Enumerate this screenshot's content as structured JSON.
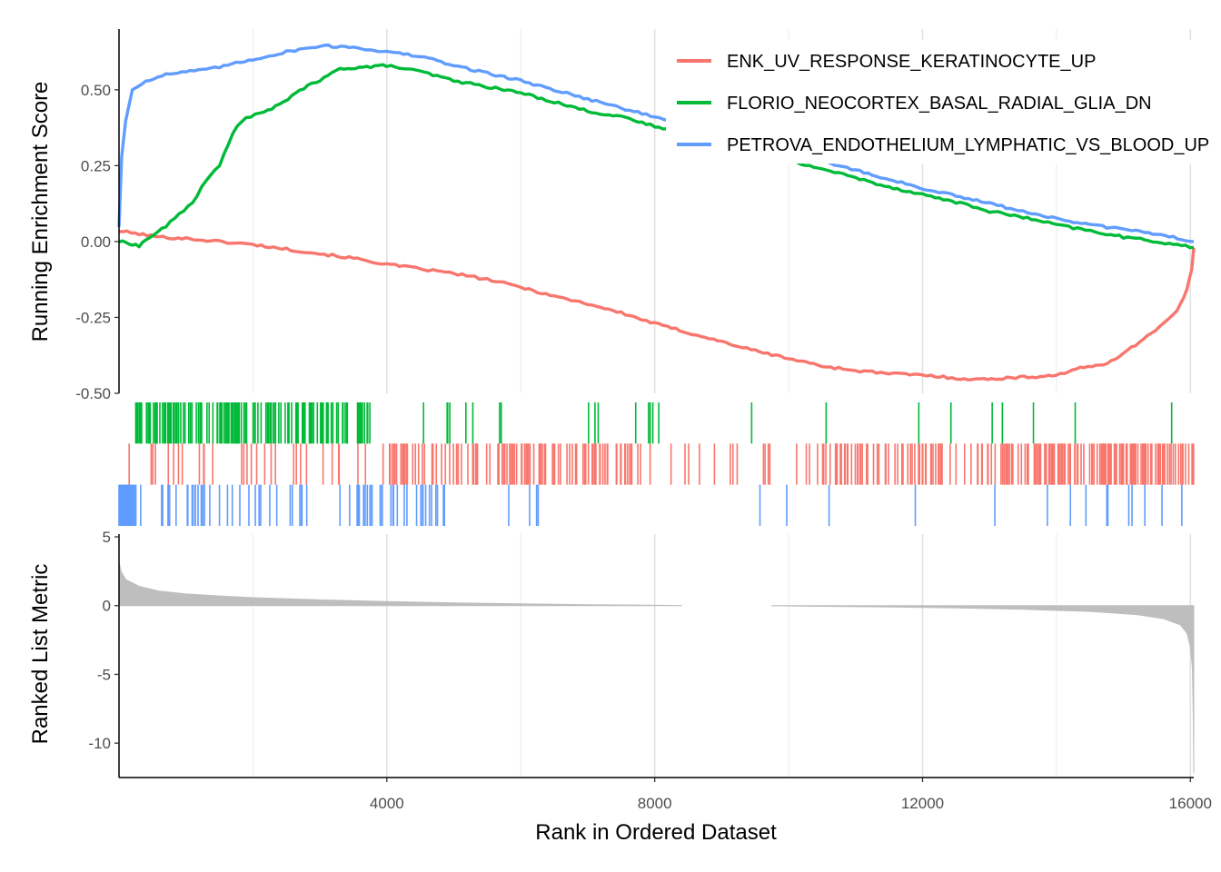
{
  "chart_data": {
    "type": "line",
    "xlabel": "Rank in Ordered Dataset",
    "x_ticks": [
      4000,
      8000,
      12000,
      16000
    ],
    "xlim": [
      0,
      16050
    ],
    "legend_position": "top-right",
    "es_panel": {
      "ylabel": "Running Enrichment Score",
      "ylim": [
        -0.5,
        0.7
      ],
      "y_ticks": [
        -0.5,
        -0.25,
        0,
        0.25,
        0.5
      ],
      "y_tick_labels": [
        "-0.50",
        "-0.25",
        "0.00",
        "0.25",
        "0.50"
      ],
      "series": [
        {
          "name": "ENK_UV_RESPONSE_KERATINOCYTE_UP",
          "color": "#F8766D",
          "points": [
            [
              0,
              0.035
            ],
            [
              300,
              0.025
            ],
            [
              600,
              0.015
            ],
            [
              1000,
              0.01
            ],
            [
              1500,
              0.0
            ],
            [
              2000,
              -0.01
            ],
            [
              2500,
              -0.025
            ],
            [
              3000,
              -0.04
            ],
            [
              3500,
              -0.055
            ],
            [
              4000,
              -0.075
            ],
            [
              4500,
              -0.09
            ],
            [
              5000,
              -0.105
            ],
            [
              5500,
              -0.125
            ],
            [
              6000,
              -0.15
            ],
            [
              6500,
              -0.18
            ],
            [
              7000,
              -0.205
            ],
            [
              7500,
              -0.235
            ],
            [
              8000,
              -0.27
            ],
            [
              8500,
              -0.3
            ],
            [
              9000,
              -0.33
            ],
            [
              9500,
              -0.36
            ],
            [
              10000,
              -0.385
            ],
            [
              10500,
              -0.41
            ],
            [
              11000,
              -0.425
            ],
            [
              11500,
              -0.435
            ],
            [
              12000,
              -0.44
            ],
            [
              12500,
              -0.45
            ],
            [
              12800,
              -0.455
            ],
            [
              13200,
              -0.45
            ],
            [
              13700,
              -0.445
            ],
            [
              14000,
              -0.44
            ],
            [
              14300,
              -0.42
            ],
            [
              14700,
              -0.405
            ],
            [
              15000,
              -0.37
            ],
            [
              15300,
              -0.32
            ],
            [
              15600,
              -0.27
            ],
            [
              15800,
              -0.23
            ],
            [
              15950,
              -0.16
            ],
            [
              16020,
              -0.09
            ],
            [
              16050,
              -0.02
            ]
          ]
        },
        {
          "name": "FLORIO_NEOCORTEX_BASAL_RADIAL_GLIA_DN",
          "color": "#00BA38",
          "points": [
            [
              0,
              0.0
            ],
            [
              150,
              -0.005
            ],
            [
              300,
              -0.015
            ],
            [
              400,
              0.005
            ],
            [
              700,
              0.05
            ],
            [
              900,
              0.09
            ],
            [
              1100,
              0.13
            ],
            [
              1300,
              0.2
            ],
            [
              1500,
              0.25
            ],
            [
              1700,
              0.36
            ],
            [
              1900,
              0.41
            ],
            [
              2100,
              0.42
            ],
            [
              2400,
              0.45
            ],
            [
              2700,
              0.5
            ],
            [
              3000,
              0.53
            ],
            [
              3300,
              0.57
            ],
            [
              3700,
              0.575
            ],
            [
              4000,
              0.58
            ],
            [
              4500,
              0.56
            ],
            [
              5000,
              0.53
            ],
            [
              5500,
              0.51
            ],
            [
              6000,
              0.49
            ],
            [
              6500,
              0.46
            ],
            [
              7000,
              0.43
            ],
            [
              7500,
              0.41
            ],
            [
              8000,
              0.38
            ],
            [
              8500,
              0.35
            ],
            [
              9000,
              0.32
            ],
            [
              9500,
              0.29
            ],
            [
              10000,
              0.265
            ],
            [
              10500,
              0.24
            ],
            [
              11000,
              0.21
            ],
            [
              11500,
              0.18
            ],
            [
              12000,
              0.155
            ],
            [
              12500,
              0.13
            ],
            [
              13000,
              0.1
            ],
            [
              13500,
              0.08
            ],
            [
              14000,
              0.055
            ],
            [
              14500,
              0.035
            ],
            [
              15000,
              0.015
            ],
            [
              15500,
              0.0
            ],
            [
              16050,
              -0.02
            ]
          ]
        },
        {
          "name": "PETROVA_ENDOTHELIUM_LYMPHATIC_VS_BLOOD_UP",
          "color": "#619CFF",
          "points": [
            [
              0,
              0.05
            ],
            [
              40,
              0.28
            ],
            [
              100,
              0.4
            ],
            [
              200,
              0.5
            ],
            [
              400,
              0.53
            ],
            [
              700,
              0.55
            ],
            [
              1000,
              0.56
            ],
            [
              1300,
              0.565
            ],
            [
              1500,
              0.575
            ],
            [
              2000,
              0.6
            ],
            [
              2500,
              0.625
            ],
            [
              3000,
              0.645
            ],
            [
              3500,
              0.64
            ],
            [
              4000,
              0.625
            ],
            [
              4500,
              0.61
            ],
            [
              5000,
              0.58
            ],
            [
              5500,
              0.555
            ],
            [
              6000,
              0.53
            ],
            [
              6500,
              0.5
            ],
            [
              7000,
              0.47
            ],
            [
              7500,
              0.44
            ],
            [
              8000,
              0.41
            ],
            [
              8500,
              0.385
            ],
            [
              9000,
              0.355
            ],
            [
              9500,
              0.325
            ],
            [
              10000,
              0.295
            ],
            [
              10500,
              0.265
            ],
            [
              11000,
              0.235
            ],
            [
              11500,
              0.205
            ],
            [
              12000,
              0.175
            ],
            [
              12500,
              0.15
            ],
            [
              13000,
              0.125
            ],
            [
              13500,
              0.1
            ],
            [
              14000,
              0.075
            ],
            [
              14500,
              0.055
            ],
            [
              15000,
              0.04
            ],
            [
              15500,
              0.025
            ],
            [
              16050,
              0.0
            ]
          ]
        }
      ]
    },
    "hits_panel": {
      "rows": [
        {
          "series": "FLORIO_NEOCORTEX_BASAL_RADIAL_GLIA_DN",
          "color": "#00BA38",
          "seed": 11,
          "segments": [
            [
              250,
              3750,
              0.32
            ],
            [
              4500,
              5400,
              0.05
            ],
            [
              5100,
              6100,
              0.06
            ],
            [
              6900,
              8100,
              0.08
            ],
            [
              9000,
              10800,
              0.012
            ],
            [
              11000,
              16050,
              0.009
            ]
          ]
        },
        {
          "series": "ENK_UV_RESPONSE_KERATINOCYTE_UP",
          "color": "#F8766D",
          "seed": 23,
          "segments": [
            [
              0,
              4050,
              0.05
            ],
            [
              4050,
              7700,
              0.22
            ],
            [
              7700,
              9000,
              0.08
            ],
            [
              9000,
              10500,
              0.04
            ],
            [
              10500,
              13800,
              0.18
            ],
            [
              13800,
              16050,
              0.35
            ]
          ]
        },
        {
          "series": "PETROVA_ENDOTHELIUM_LYMPHATIC_VS_BLOOD_UP",
          "color": "#619CFF",
          "seed": 37,
          "segments": [
            [
              0,
              220,
              1.0
            ],
            [
              220,
              4900,
              0.1
            ],
            [
              4900,
              7500,
              0.02
            ],
            [
              7500,
              12000,
              0.008
            ],
            [
              12000,
              16050,
              0.025
            ]
          ]
        }
      ]
    },
    "metric_panel": {
      "ylabel": "Ranked List Metric",
      "ylim": [
        -12.5,
        5.2
      ],
      "y_ticks": [
        -10,
        -5,
        0,
        5
      ],
      "y_tick_labels": [
        "-10",
        "-5",
        "0",
        "5"
      ],
      "fill": "#BEBEBE",
      "gap": [
        8400,
        9750
      ],
      "curve": [
        [
          0,
          3.2
        ],
        [
          30,
          2.5
        ],
        [
          100,
          1.9
        ],
        [
          300,
          1.4
        ],
        [
          600,
          1.05
        ],
        [
          1000,
          0.85
        ],
        [
          1500,
          0.7
        ],
        [
          2000,
          0.58
        ],
        [
          3000,
          0.42
        ],
        [
          4000,
          0.3
        ],
        [
          5000,
          0.2
        ],
        [
          6000,
          0.13
        ],
        [
          7000,
          0.07
        ],
        [
          8000,
          0.03
        ],
        [
          8400,
          0.01
        ],
        [
          9750,
          -0.01
        ],
        [
          10500,
          -0.05
        ],
        [
          11500,
          -0.1
        ],
        [
          12500,
          -0.17
        ],
        [
          13500,
          -0.27
        ],
        [
          14500,
          -0.42
        ],
        [
          15200,
          -0.65
        ],
        [
          15600,
          -0.95
        ],
        [
          15850,
          -1.4
        ],
        [
          15950,
          -2.0
        ],
        [
          16000,
          -3.0
        ],
        [
          16030,
          -4.5
        ],
        [
          16045,
          -8.5
        ],
        [
          16050,
          -12.2
        ]
      ]
    }
  }
}
